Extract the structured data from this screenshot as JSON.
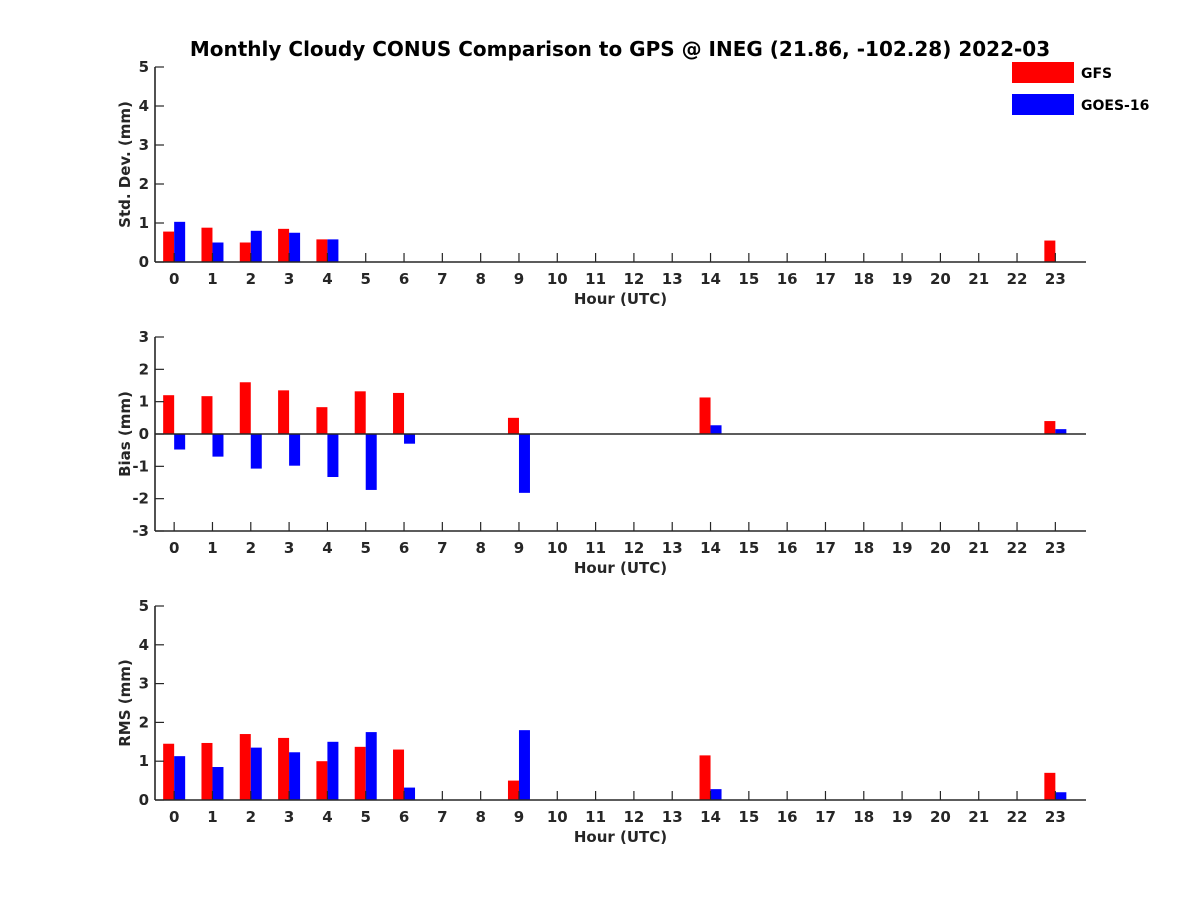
{
  "title": "Monthly Cloudy CONUS Comparison to GPS @ INEG (21.86, -102.28) 2022-03",
  "legend": {
    "location": "top-right",
    "entries": [
      {
        "name": "GFS",
        "color": "#ff0000"
      },
      {
        "name": "GOES-16",
        "color": "#0000ff"
      }
    ]
  },
  "chart_data": [
    {
      "type": "bar",
      "title": "Monthly Cloudy CONUS Comparison to GPS @ INEG (21.86, -102.28) 2022-03",
      "xlabel": "Hour (UTC)",
      "ylabel": "Std. Dev. (mm)",
      "ylim": [
        0,
        5
      ],
      "yticks": [
        0,
        1,
        2,
        3,
        4,
        5
      ],
      "categories": [
        "0",
        "1",
        "2",
        "3",
        "4",
        "5",
        "6",
        "7",
        "8",
        "9",
        "10",
        "11",
        "12",
        "13",
        "14",
        "15",
        "16",
        "17",
        "18",
        "19",
        "20",
        "21",
        "22",
        "23"
      ],
      "series": [
        {
          "name": "GFS",
          "color": "#ff0000",
          "values": [
            0.78,
            0.88,
            0.5,
            0.85,
            0.58,
            0,
            0,
            0,
            0,
            0,
            0,
            0,
            0,
            0,
            0,
            0,
            0,
            0,
            0,
            0,
            0,
            0,
            0,
            0.55
          ]
        },
        {
          "name": "GOES-16",
          "color": "#0000ff",
          "values": [
            1.03,
            0.5,
            0.8,
            0.75,
            0.58,
            0,
            0,
            0,
            0,
            0,
            0,
            0,
            0,
            0,
            0,
            0,
            0,
            0,
            0,
            0,
            0,
            0,
            0,
            0
          ]
        }
      ]
    },
    {
      "type": "bar",
      "xlabel": "Hour (UTC)",
      "ylabel": "Bias (mm)",
      "ylim": [
        -3,
        3
      ],
      "yticks": [
        -3,
        -2,
        -1,
        0,
        1,
        2,
        3
      ],
      "categories": [
        "0",
        "1",
        "2",
        "3",
        "4",
        "5",
        "6",
        "7",
        "8",
        "9",
        "10",
        "11",
        "12",
        "13",
        "14",
        "15",
        "16",
        "17",
        "18",
        "19",
        "20",
        "21",
        "22",
        "23"
      ],
      "series": [
        {
          "name": "GFS",
          "color": "#ff0000",
          "values": [
            1.2,
            1.17,
            1.6,
            1.35,
            0.83,
            1.32,
            1.27,
            0,
            0,
            0.5,
            0,
            0,
            0,
            0,
            1.13,
            0,
            0,
            0,
            0,
            0,
            0,
            0,
            0,
            0.4
          ]
        },
        {
          "name": "GOES-16",
          "color": "#0000ff",
          "values": [
            -0.48,
            -0.7,
            -1.07,
            -0.98,
            -1.33,
            -1.73,
            -0.3,
            0,
            0,
            -1.82,
            0,
            0,
            0,
            0,
            0.27,
            0,
            0,
            0,
            0,
            0,
            0,
            0,
            0,
            0.15
          ]
        }
      ]
    },
    {
      "type": "bar",
      "xlabel": "Hour (UTC)",
      "ylabel": "RMS (mm)",
      "ylim": [
        0,
        5
      ],
      "yticks": [
        0,
        1,
        2,
        3,
        4,
        5
      ],
      "categories": [
        "0",
        "1",
        "2",
        "3",
        "4",
        "5",
        "6",
        "7",
        "8",
        "9",
        "10",
        "11",
        "12",
        "13",
        "14",
        "15",
        "16",
        "17",
        "18",
        "19",
        "20",
        "21",
        "22",
        "23"
      ],
      "series": [
        {
          "name": "GFS",
          "color": "#ff0000",
          "values": [
            1.45,
            1.47,
            1.7,
            1.6,
            1.0,
            1.37,
            1.3,
            0,
            0,
            0.5,
            0,
            0,
            0,
            0,
            1.15,
            0,
            0,
            0,
            0,
            0,
            0,
            0,
            0,
            0.7
          ]
        },
        {
          "name": "GOES-16",
          "color": "#0000ff",
          "values": [
            1.13,
            0.85,
            1.35,
            1.23,
            1.5,
            1.75,
            0.32,
            0,
            0,
            1.8,
            0,
            0,
            0,
            0,
            0.28,
            0,
            0,
            0,
            0,
            0,
            0,
            0,
            0,
            0.2
          ]
        }
      ]
    }
  ]
}
